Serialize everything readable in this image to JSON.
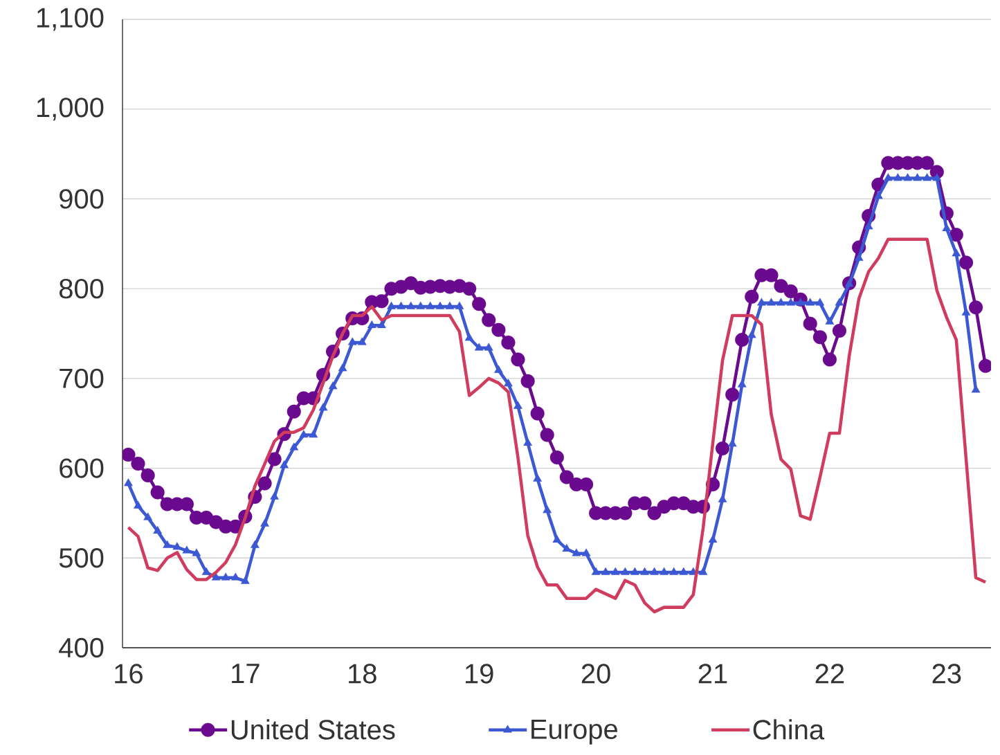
{
  "chart_data": {
    "type": "line",
    "x": [
      16,
      16.083,
      16.167,
      16.25,
      16.333,
      16.417,
      16.5,
      16.583,
      16.667,
      16.75,
      16.833,
      16.917,
      17,
      17.083,
      17.167,
      17.25,
      17.333,
      17.417,
      17.5,
      17.583,
      17.667,
      17.75,
      17.833,
      17.917,
      18,
      18.083,
      18.167,
      18.25,
      18.333,
      18.417,
      18.5,
      18.583,
      18.667,
      18.75,
      18.833,
      18.917,
      19,
      19.083,
      19.167,
      19.25,
      19.333,
      19.417,
      19.5,
      19.583,
      19.667,
      19.75,
      19.833,
      19.917,
      20,
      20.083,
      20.167,
      20.25,
      20.333,
      20.417,
      20.5,
      20.583,
      20.667,
      20.75,
      20.833,
      20.917,
      21,
      21.083,
      21.167,
      21.25,
      21.333,
      21.417,
      21.5,
      21.583,
      21.667,
      21.75,
      21.833,
      21.917,
      22,
      22.083,
      22.167,
      22.25,
      22.333,
      22.417,
      22.5,
      22.583,
      22.667,
      22.75,
      22.833,
      22.917,
      23,
      23.083,
      23.167,
      23.25,
      23.333
    ],
    "xlim": [
      15.95,
      23.38
    ],
    "xticks": [
      16,
      17,
      18,
      19,
      20,
      21,
      22,
      23
    ],
    "ylim": [
      400,
      1100
    ],
    "yticks": [
      400,
      500,
      600,
      700,
      800,
      900,
      {
        "value": 1000,
        "label": "1,000"
      },
      {
        "value": 1100,
        "label": "1,100"
      }
    ],
    "grid": "y",
    "legend": "bottom",
    "series": [
      {
        "name": "United States",
        "color": "#6a0a8e",
        "marker": "circle",
        "values": [
          615,
          605,
          592,
          573,
          560,
          560,
          560,
          545,
          545,
          540,
          535,
          535,
          546,
          568,
          583,
          610,
          638,
          663,
          678,
          678,
          704,
          730,
          750,
          767,
          767,
          785,
          786,
          800,
          802,
          806,
          801,
          802,
          803,
          802,
          803,
          800,
          783,
          765,
          754,
          740,
          721,
          697,
          661,
          637,
          612,
          590,
          582,
          582,
          550,
          550,
          550,
          550,
          561,
          561,
          550,
          557,
          561,
          561,
          557,
          557,
          582,
          622,
          682,
          743,
          791,
          815,
          815,
          803,
          797,
          788,
          761,
          746,
          721,
          753,
          806,
          846,
          881,
          916,
          940,
          940,
          940,
          940,
          940,
          930,
          884,
          860,
          829,
          779,
          714
        ]
      },
      {
        "name": "Europe",
        "color": "#3c58d3",
        "marker": "triangle",
        "values": [
          583,
          558,
          545,
          530,
          514,
          512,
          508,
          505,
          484,
          478,
          478,
          478,
          474,
          514,
          538,
          568,
          603,
          623,
          637,
          637,
          667,
          691,
          711,
          740,
          740,
          759,
          759,
          780,
          780,
          780,
          780,
          780,
          780,
          780,
          780,
          745,
          734,
          734,
          709,
          694,
          669,
          628,
          588,
          553,
          520,
          510,
          505,
          505,
          484,
          484,
          484,
          484,
          484,
          484,
          484,
          484,
          484,
          484,
          484,
          484,
          520,
          565,
          627,
          693,
          748,
          784,
          784,
          784,
          784,
          784,
          784,
          784,
          763,
          784,
          805,
          834,
          869,
          903,
          923,
          923,
          923,
          923,
          923,
          923,
          867,
          839,
          773,
          687,
          null
        ]
      },
      {
        "name": "China",
        "color": "#d03c5e",
        "marker": "none",
        "values": [
          534,
          524,
          489,
          486,
          500,
          506,
          487,
          476,
          476,
          484,
          495,
          515,
          545,
          580,
          605,
          630,
          640,
          640,
          645,
          665,
          695,
          725,
          750,
          770,
          770,
          780,
          765,
          770,
          770,
          770,
          770,
          770,
          770,
          770,
          752,
          681,
          690,
          700,
          695,
          685,
          612,
          525,
          490,
          470,
          470,
          455,
          455,
          455,
          465,
          460,
          455,
          475,
          470,
          450,
          440,
          445,
          445,
          445,
          459,
          533,
          628,
          720,
          770,
          770,
          770,
          760,
          660,
          610,
          599,
          547,
          543,
          590,
          639,
          639,
          725,
          789,
          819,
          834,
          855,
          855,
          855,
          855,
          855,
          798,
          768,
          743,
          610,
          478,
          473
        ]
      }
    ]
  }
}
